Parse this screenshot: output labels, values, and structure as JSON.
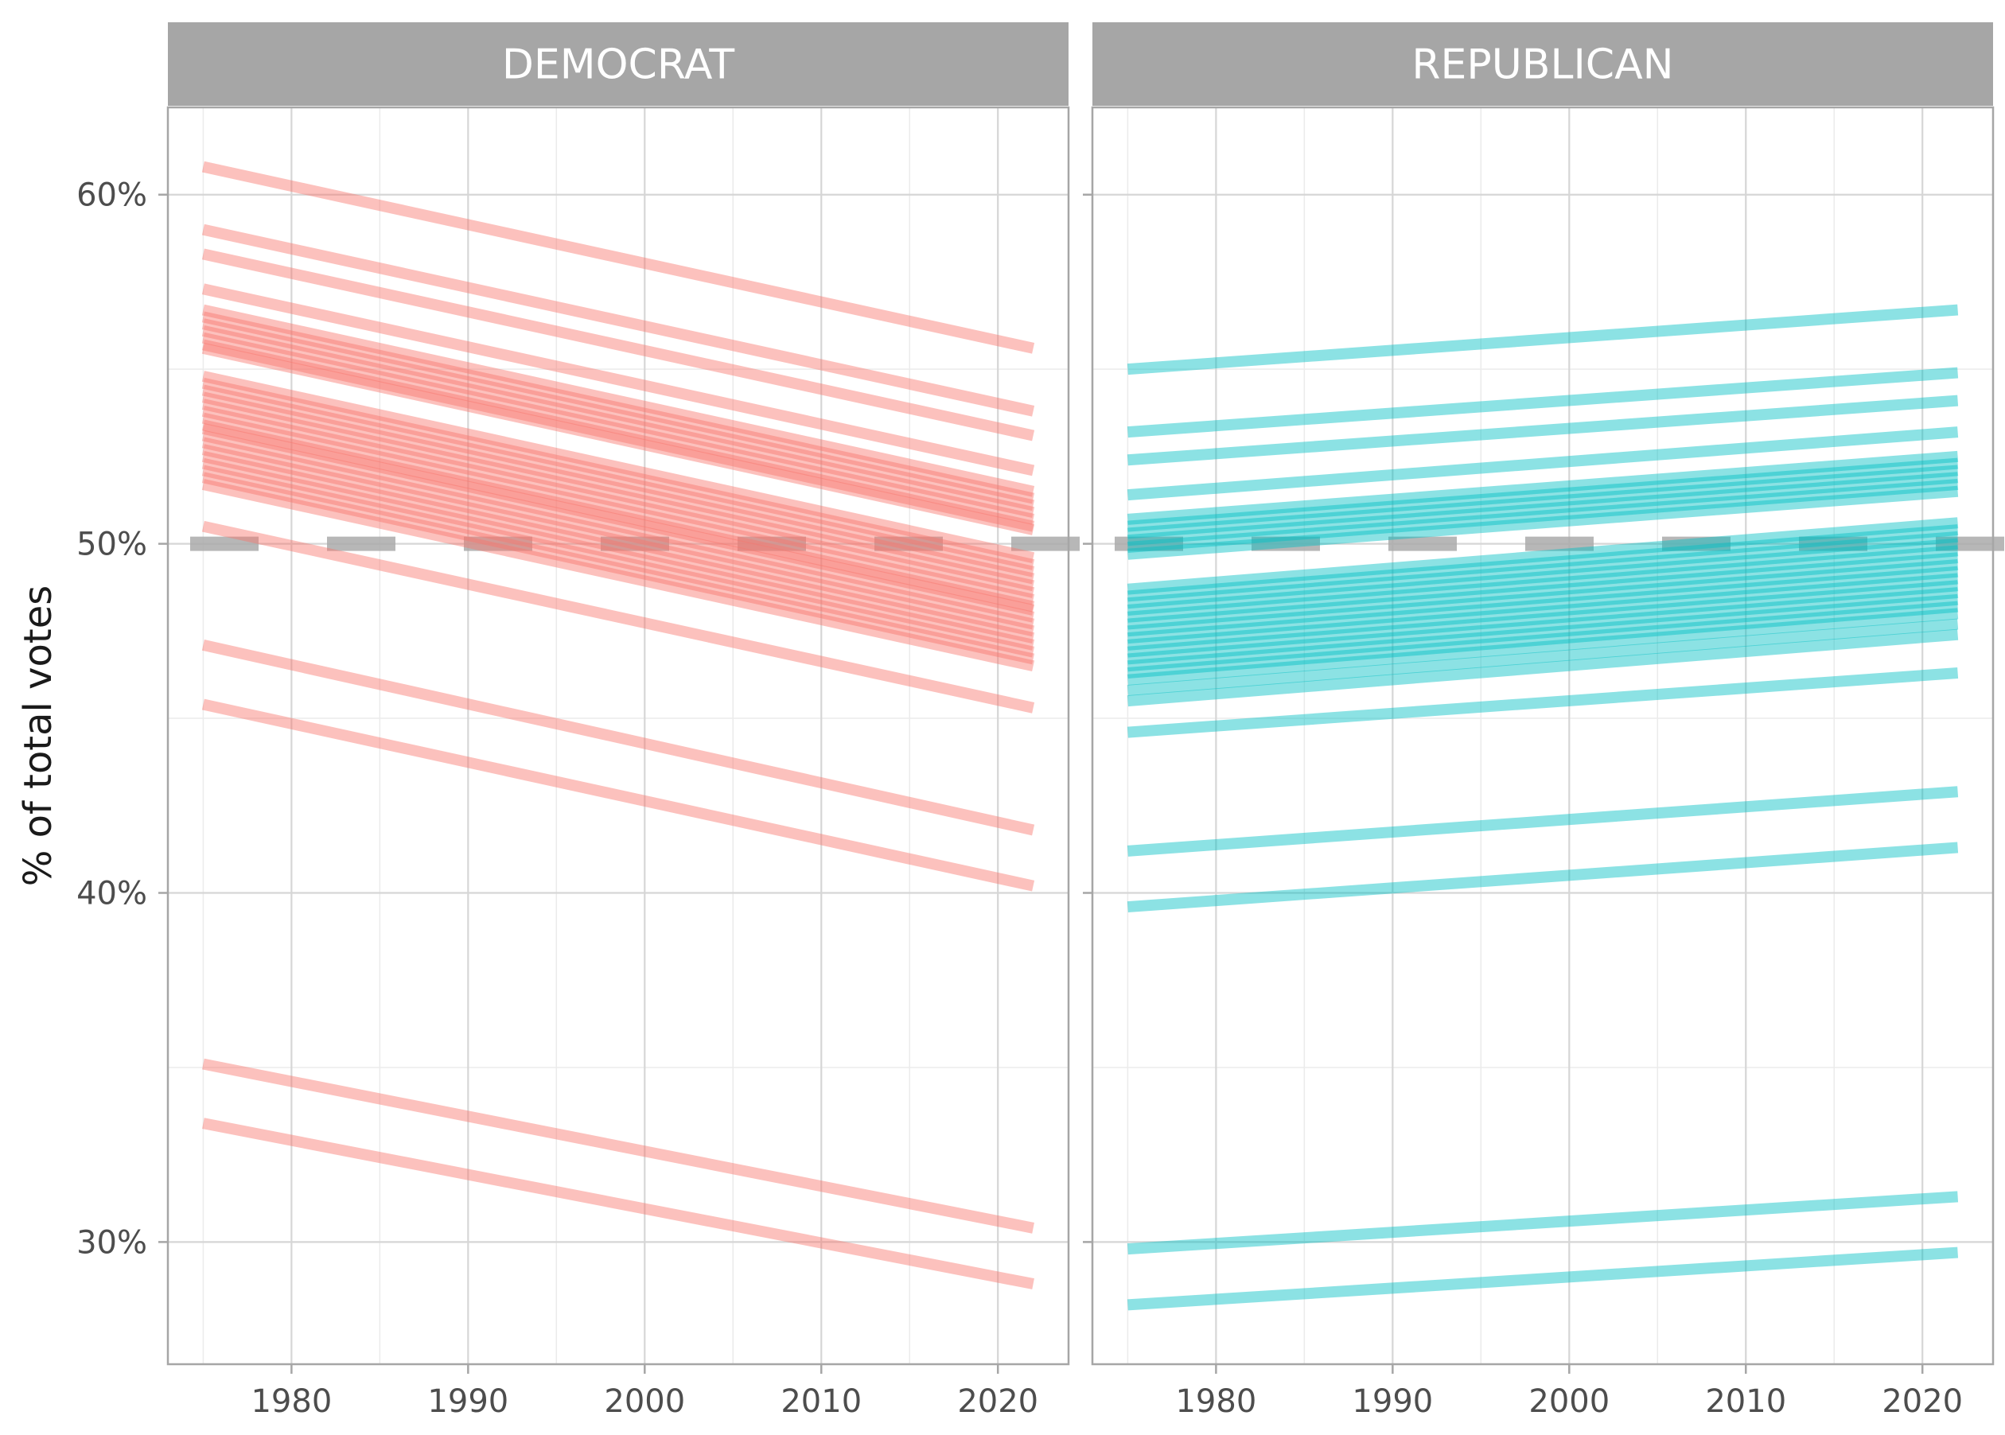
{
  "chart_data": {
    "type": "line",
    "facets": [
      "DEMOCRAT",
      "REPUBLICAN"
    ],
    "ylabel": "% of total votes",
    "xlabel": "",
    "xlim": [
      1973,
      2024
    ],
    "ylim": [
      0.265,
      0.625
    ],
    "x_ticks": [
      1980,
      1990,
      2000,
      2010,
      2020
    ],
    "x_tick_labels": [
      "1980",
      "1990",
      "2000",
      "2010",
      "2020"
    ],
    "y_ticks": [
      0.3,
      0.4,
      0.5,
      0.6
    ],
    "y_tick_labels": [
      "30%",
      "40%",
      "50%",
      "60%"
    ],
    "reference_line": {
      "y": 0.5,
      "style": "dashed",
      "color": "#aaaaaa"
    },
    "grid": true,
    "legend": "none",
    "colors": {
      "DEMOCRAT": "#f8766d",
      "REPUBLICAN": "#00bfc4",
      "strip": "#a6a6a6",
      "strip_text": "#ffffff"
    },
    "x": [
      1975,
      2022
    ],
    "series": [
      {
        "facet": "DEMOCRAT",
        "values": [
          0.608,
          0.556
        ]
      },
      {
        "facet": "DEMOCRAT",
        "values": [
          0.59,
          0.538
        ]
      },
      {
        "facet": "DEMOCRAT",
        "values": [
          0.583,
          0.531
        ]
      },
      {
        "facet": "DEMOCRAT",
        "values": [
          0.573,
          0.521
        ]
      },
      {
        "facet": "DEMOCRAT",
        "values": [
          0.567,
          0.515
        ]
      },
      {
        "facet": "DEMOCRAT",
        "values": [
          0.565,
          0.513
        ]
      },
      {
        "facet": "DEMOCRAT",
        "values": [
          0.563,
          0.511
        ]
      },
      {
        "facet": "DEMOCRAT",
        "values": [
          0.561,
          0.509
        ]
      },
      {
        "facet": "DEMOCRAT",
        "values": [
          0.559,
          0.507
        ]
      },
      {
        "facet": "DEMOCRAT",
        "values": [
          0.557,
          0.505
        ]
      },
      {
        "facet": "DEMOCRAT",
        "values": [
          0.556,
          0.504
        ]
      },
      {
        "facet": "DEMOCRAT",
        "values": [
          0.548,
          0.496
        ]
      },
      {
        "facet": "DEMOCRAT",
        "values": [
          0.546,
          0.494
        ]
      },
      {
        "facet": "DEMOCRAT",
        "values": [
          0.544,
          0.492
        ]
      },
      {
        "facet": "DEMOCRAT",
        "values": [
          0.542,
          0.49
        ]
      },
      {
        "facet": "DEMOCRAT",
        "values": [
          0.54,
          0.488
        ]
      },
      {
        "facet": "DEMOCRAT",
        "values": [
          0.538,
          0.486
        ]
      },
      {
        "facet": "DEMOCRAT",
        "values": [
          0.536,
          0.484
        ]
      },
      {
        "facet": "DEMOCRAT",
        "values": [
          0.534,
          0.482
        ]
      },
      {
        "facet": "DEMOCRAT",
        "values": [
          0.533,
          0.481
        ]
      },
      {
        "facet": "DEMOCRAT",
        "values": [
          0.531,
          0.479
        ]
      },
      {
        "facet": "DEMOCRAT",
        "values": [
          0.529,
          0.477
        ]
      },
      {
        "facet": "DEMOCRAT",
        "values": [
          0.527,
          0.475
        ]
      },
      {
        "facet": "DEMOCRAT",
        "values": [
          0.525,
          0.473
        ]
      },
      {
        "facet": "DEMOCRAT",
        "values": [
          0.523,
          0.471
        ]
      },
      {
        "facet": "DEMOCRAT",
        "values": [
          0.521,
          0.469
        ]
      },
      {
        "facet": "DEMOCRAT",
        "values": [
          0.519,
          0.467
        ]
      },
      {
        "facet": "DEMOCRAT",
        "values": [
          0.517,
          0.465
        ]
      },
      {
        "facet": "DEMOCRAT",
        "values": [
          0.505,
          0.453
        ]
      },
      {
        "facet": "DEMOCRAT",
        "values": [
          0.471,
          0.418
        ]
      },
      {
        "facet": "DEMOCRAT",
        "values": [
          0.454,
          0.402
        ]
      },
      {
        "facet": "DEMOCRAT",
        "values": [
          0.351,
          0.304
        ]
      },
      {
        "facet": "DEMOCRAT",
        "values": [
          0.334,
          0.288
        ]
      },
      {
        "facet": "REPUBLICAN",
        "values": [
          0.55,
          0.567
        ]
      },
      {
        "facet": "REPUBLICAN",
        "values": [
          0.532,
          0.549
        ]
      },
      {
        "facet": "REPUBLICAN",
        "values": [
          0.524,
          0.541
        ]
      },
      {
        "facet": "REPUBLICAN",
        "values": [
          0.514,
          0.532
        ]
      },
      {
        "facet": "REPUBLICAN",
        "values": [
          0.507,
          0.525
        ]
      },
      {
        "facet": "REPUBLICAN",
        "values": [
          0.505,
          0.523
        ]
      },
      {
        "facet": "REPUBLICAN",
        "values": [
          0.503,
          0.521
        ]
      },
      {
        "facet": "REPUBLICAN",
        "values": [
          0.501,
          0.519
        ]
      },
      {
        "facet": "REPUBLICAN",
        "values": [
          0.499,
          0.517
        ]
      },
      {
        "facet": "REPUBLICAN",
        "values": [
          0.497,
          0.515
        ]
      },
      {
        "facet": "REPUBLICAN",
        "values": [
          0.487,
          0.506
        ]
      },
      {
        "facet": "REPUBLICAN",
        "values": [
          0.485,
          0.504
        ]
      },
      {
        "facet": "REPUBLICAN",
        "values": [
          0.483,
          0.502
        ]
      },
      {
        "facet": "REPUBLICAN",
        "values": [
          0.481,
          0.5
        ]
      },
      {
        "facet": "REPUBLICAN",
        "values": [
          0.479,
          0.498
        ]
      },
      {
        "facet": "REPUBLICAN",
        "values": [
          0.477,
          0.496
        ]
      },
      {
        "facet": "REPUBLICAN",
        "values": [
          0.475,
          0.494
        ]
      },
      {
        "facet": "REPUBLICAN",
        "values": [
          0.473,
          0.492
        ]
      },
      {
        "facet": "REPUBLICAN",
        "values": [
          0.471,
          0.49
        ]
      },
      {
        "facet": "REPUBLICAN",
        "values": [
          0.469,
          0.488
        ]
      },
      {
        "facet": "REPUBLICAN",
        "values": [
          0.467,
          0.486
        ]
      },
      {
        "facet": "REPUBLICAN",
        "values": [
          0.465,
          0.484
        ]
      },
      {
        "facet": "REPUBLICAN",
        "values": [
          0.463,
          0.482
        ]
      },
      {
        "facet": "REPUBLICAN",
        "values": [
          0.461,
          0.48
        ]
      },
      {
        "facet": "REPUBLICAN",
        "values": [
          0.458,
          0.477
        ]
      },
      {
        "facet": "REPUBLICAN",
        "values": [
          0.455,
          0.474
        ]
      },
      {
        "facet": "REPUBLICAN",
        "values": [
          0.446,
          0.463
        ]
      },
      {
        "facet": "REPUBLICAN",
        "values": [
          0.412,
          0.429
        ]
      },
      {
        "facet": "REPUBLICAN",
        "values": [
          0.396,
          0.413
        ]
      },
      {
        "facet": "REPUBLICAN",
        "values": [
          0.298,
          0.313
        ]
      },
      {
        "facet": "REPUBLICAN",
        "values": [
          0.282,
          0.297
        ]
      }
    ]
  }
}
